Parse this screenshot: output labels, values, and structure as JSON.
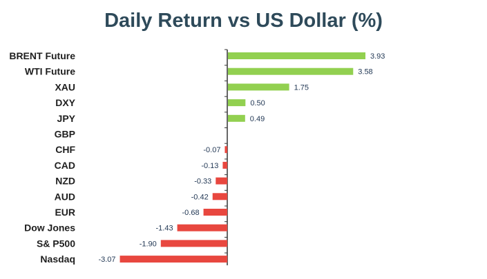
{
  "chart_data": {
    "type": "bar",
    "orientation": "horizontal",
    "title": "Daily Return vs US Dollar (%)",
    "categories": [
      "BRENT Future",
      "WTI Future",
      "XAU",
      "DXY",
      "JPY",
      "GBP",
      "CHF",
      "CAD",
      "NZD",
      "AUD",
      "EUR",
      "Dow Jones",
      "S& P500",
      "Nasdaq"
    ],
    "values": [
      3.93,
      3.58,
      1.75,
      0.5,
      0.49,
      null,
      -0.07,
      -0.13,
      -0.33,
      -0.42,
      -0.68,
      -1.43,
      -1.9,
      -3.07
    ],
    "value_labels": [
      "3.93",
      "3.58",
      "1.75",
      "0.50",
      "0.49",
      "",
      "-0.07",
      "-0.13",
      "-0.33",
      "-0.42",
      "-0.68",
      "-1.43",
      "-1.90",
      "-3.07"
    ],
    "xlim": [
      -3.07,
      3.93
    ],
    "positive_color": "#92d050",
    "negative_color": "#e8473f",
    "axis_color": "#333333",
    "grid": false,
    "legend": "none"
  }
}
